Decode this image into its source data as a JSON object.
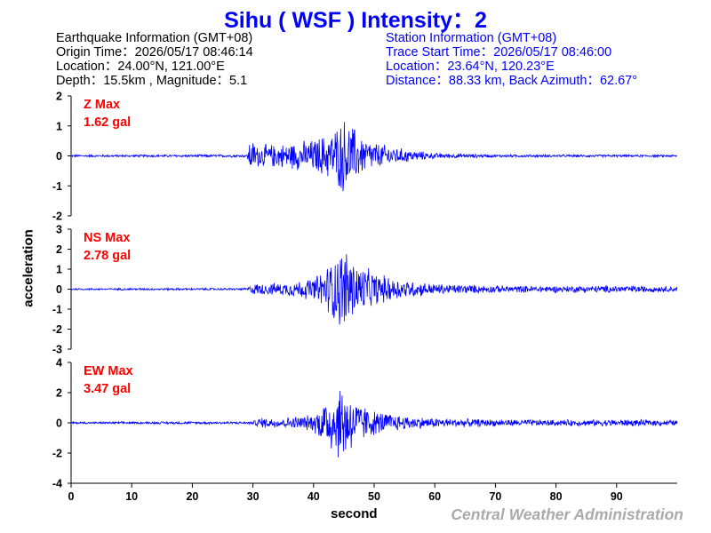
{
  "header": {
    "title": "Sihu  ( WSF )  Intensity：2"
  },
  "earthquake_info": [
    "Earthquake Information  (GMT+08)",
    "Origin Time：2026/05/17 08:46:14",
    "Location：24.00°N, 121.00°E",
    "Depth：15.5km , Magnitude：5.1"
  ],
  "station_info": [
    "Station Information  (GMT+08)",
    "Trace Start Time：2026/05/17 08:46:00",
    "Location：23.64°N, 120.23°E",
    "Distance：88.33 km, Back Azimuth：62.67°"
  ],
  "footer": {
    "credit": "Central Weather Administration"
  },
  "colors": {
    "trace": "#0000ff",
    "title": "#0000ff",
    "max_label": "#ff0000",
    "credit": "#aaaaaa"
  },
  "chart_data": {
    "type": "line",
    "xlabel": "second",
    "ylabel": "acceleration",
    "xlim": [
      0,
      100
    ],
    "x_ticks": [
      0,
      10,
      20,
      30,
      40,
      50,
      60,
      70,
      80,
      90
    ],
    "panels": [
      {
        "name": "Z",
        "max_label": "Z Max",
        "max_value": "1.62 gal",
        "ylim": [
          -2,
          2
        ],
        "y_ticks": [
          2,
          1,
          0,
          -1,
          -2
        ],
        "envelope": [
          [
            0,
            0.04
          ],
          [
            29,
            0.05
          ],
          [
            29.5,
            0.6
          ],
          [
            31,
            0.4
          ],
          [
            35,
            0.45
          ],
          [
            40,
            0.6
          ],
          [
            43,
            0.9
          ],
          [
            45,
            1.4
          ],
          [
            46.5,
            1.1
          ],
          [
            48,
            0.7
          ],
          [
            50,
            0.5
          ],
          [
            55,
            0.25
          ],
          [
            60,
            0.1
          ],
          [
            70,
            0.05
          ],
          [
            100,
            0.04
          ]
        ]
      },
      {
        "name": "NS",
        "max_label": "NS Max",
        "max_value": "2.78 gal",
        "ylim": [
          -3,
          3
        ],
        "y_ticks": [
          3,
          2,
          1,
          0,
          -1,
          -2,
          -3
        ],
        "envelope": [
          [
            0,
            0.05
          ],
          [
            29,
            0.06
          ],
          [
            30,
            0.3
          ],
          [
            35,
            0.35
          ],
          [
            40,
            0.6
          ],
          [
            42,
            1.2
          ],
          [
            45,
            2.4
          ],
          [
            47,
            1.5
          ],
          [
            50,
            0.9
          ],
          [
            55,
            0.5
          ],
          [
            60,
            0.3
          ],
          [
            70,
            0.2
          ],
          [
            80,
            0.18
          ],
          [
            90,
            0.2
          ],
          [
            100,
            0.15
          ]
        ]
      },
      {
        "name": "EW",
        "max_label": "EW Max",
        "max_value": "3.47 gal",
        "ylim": [
          -4,
          4
        ],
        "y_ticks": [
          4,
          2,
          0,
          -2,
          -4
        ],
        "envelope": [
          [
            0,
            0.08
          ],
          [
            30,
            0.1
          ],
          [
            31,
            0.4
          ],
          [
            35,
            0.35
          ],
          [
            40,
            0.6
          ],
          [
            42,
            1.8
          ],
          [
            45,
            3.0
          ],
          [
            47,
            1.6
          ],
          [
            50,
            0.9
          ],
          [
            55,
            0.5
          ],
          [
            60,
            0.35
          ],
          [
            70,
            0.25
          ],
          [
            80,
            0.22
          ],
          [
            90,
            0.25
          ],
          [
            100,
            0.2
          ]
        ]
      }
    ]
  }
}
